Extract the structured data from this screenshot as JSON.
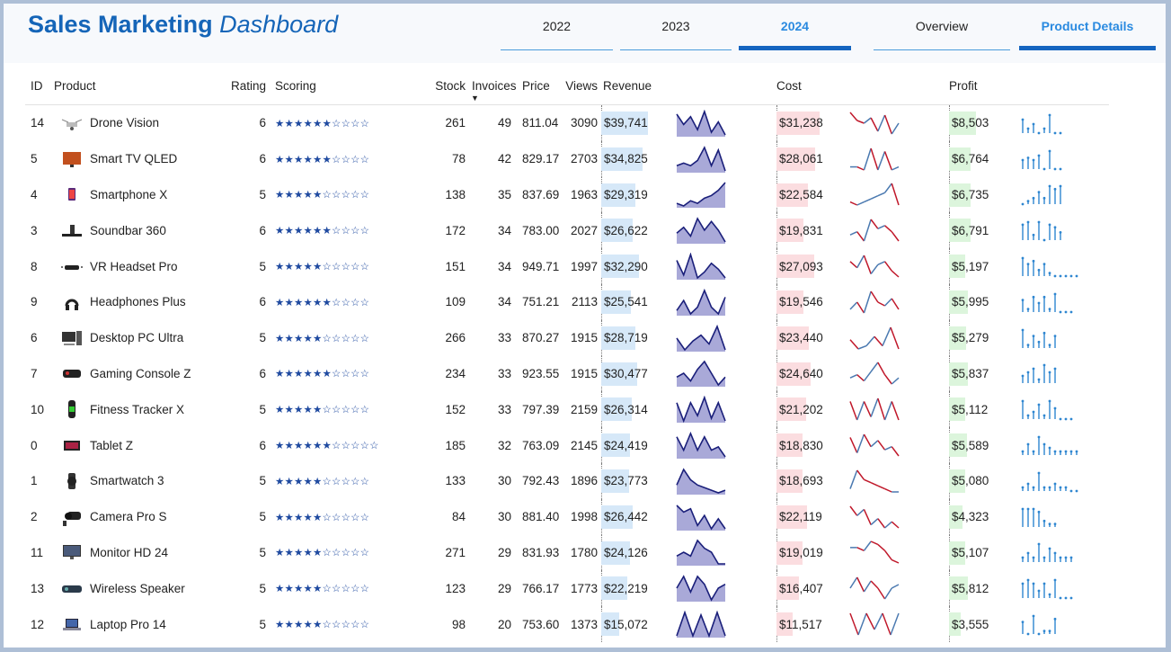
{
  "title": {
    "bold": "Sales Marketing",
    "italic": "Dashboard"
  },
  "years": [
    {
      "label": "2022",
      "active": false
    },
    {
      "label": "2023",
      "active": false
    },
    {
      "label": "2024",
      "active": true
    }
  ],
  "views": [
    {
      "label": "Overview",
      "active": false
    },
    {
      "label": "Product Details",
      "active": true
    }
  ],
  "columns": {
    "id": "ID",
    "product": "Product",
    "rating": "Rating",
    "scoring": "Scoring",
    "stock": "Stock",
    "invoices": "Invoices",
    "price": "Price",
    "views": "Views",
    "revenue": "Revenue",
    "cost": "Cost",
    "profit": "Profit"
  },
  "sort_indicator": "▼",
  "rows": [
    {
      "id": "14",
      "product": "Drone Vision",
      "icon": "drone-icon",
      "rating": "6",
      "stars_filled": 6,
      "stars_total": 10,
      "stock": "261",
      "invoices": "49",
      "price": "811.04",
      "views": "3090",
      "revenue": "$39,741",
      "revenue_value": 39741,
      "cost": "$31,238",
      "cost_value": 31238,
      "profit": "$8,503",
      "profit_value": 8503,
      "trend_rev": [
        8,
        4,
        7,
        2,
        9,
        1,
        5,
        0
      ],
      "trend_cost": [
        8,
        5,
        4,
        6,
        1,
        7,
        0,
        4
      ],
      "trend_profit": [
        6,
        2,
        4,
        0,
        2,
        8,
        0,
        0
      ]
    },
    {
      "id": "5",
      "product": "Smart TV QLED",
      "icon": "tv-icon",
      "rating": "6",
      "stars_filled": 6,
      "stars_total": 10,
      "stock": "78",
      "invoices": "42",
      "price": "829.17",
      "views": "2703",
      "revenue": "$34,825",
      "revenue_value": 34825,
      "cost": "$28,061",
      "cost_value": 28061,
      "profit": "$6,764",
      "profit_value": 6764,
      "trend_rev": [
        2,
        3,
        2,
        4,
        9,
        2,
        8,
        0
      ],
      "trend_cost": [
        3,
        3,
        2,
        9,
        2,
        8,
        2,
        3
      ],
      "trend_profit": [
        4,
        5,
        4,
        6,
        0,
        8,
        0,
        0
      ]
    },
    {
      "id": "4",
      "product": "Smartphone X",
      "icon": "phone-icon",
      "rating": "5",
      "stars_filled": 5,
      "stars_total": 10,
      "stock": "138",
      "invoices": "35",
      "price": "837.69",
      "views": "1963",
      "revenue": "$29,319",
      "revenue_value": 29319,
      "cost": "$22,584",
      "cost_value": 22584,
      "profit": "$6,735",
      "profit_value": 6735,
      "trend_rev": [
        1,
        0,
        2,
        1,
        3,
        4,
        6,
        9
      ],
      "trend_cost": [
        2,
        1,
        2,
        3,
        4,
        5,
        8,
        1
      ],
      "trend_profit": [
        0,
        1,
        2,
        4,
        2,
        6,
        5,
        6
      ]
    },
    {
      "id": "3",
      "product": "Soundbar 360",
      "icon": "soundbar-icon",
      "rating": "6",
      "stars_filled": 6,
      "stars_total": 10,
      "stock": "172",
      "invoices": "34",
      "price": "783.00",
      "views": "2027",
      "revenue": "$26,622",
      "revenue_value": 26622,
      "cost": "$19,831",
      "cost_value": 19831,
      "profit": "$6,791",
      "profit_value": 6791,
      "trend_rev": [
        3,
        5,
        2,
        8,
        4,
        7,
        4,
        0
      ],
      "trend_cost": [
        3,
        4,
        1,
        8,
        5,
        6,
        4,
        1
      ],
      "trend_profit": [
        6,
        7,
        2,
        7,
        0,
        6,
        5,
        3
      ]
    },
    {
      "id": "8",
      "product": "VR Headset Pro",
      "icon": "vr-icon",
      "rating": "5",
      "stars_filled": 5,
      "stars_total": 10,
      "stock": "151",
      "invoices": "34",
      "price": "949.71",
      "views": "1997",
      "revenue": "$32,290",
      "revenue_value": 32290,
      "cost": "$27,093",
      "cost_value": 27093,
      "profit": "$5,197",
      "profit_value": 5197,
      "trend_rev": [
        7,
        2,
        9,
        1,
        3,
        6,
        4,
        1
      ],
      "trend_cost": [
        6,
        4,
        8,
        2,
        5,
        6,
        3,
        1
      ],
      "trend_profit": [
        6,
        4,
        5,
        2,
        4,
        1,
        0,
        0,
        0,
        0,
        0
      ]
    },
    {
      "id": "9",
      "product": "Headphones Plus",
      "icon": "headphones-icon",
      "rating": "6",
      "stars_filled": 6,
      "stars_total": 10,
      "stock": "109",
      "invoices": "34",
      "price": "751.21",
      "views": "2113",
      "revenue": "$25,541",
      "revenue_value": 25541,
      "cost": "$19,546",
      "cost_value": 19546,
      "profit": "$5,995",
      "profit_value": 5995,
      "trend_rev": [
        2,
        5,
        1,
        3,
        8,
        3,
        1,
        6
      ],
      "trend_cost": [
        2,
        4,
        1,
        7,
        4,
        3,
        5,
        2
      ],
      "trend_profit": [
        4,
        1,
        5,
        3,
        5,
        1,
        6,
        0,
        0,
        0
      ]
    },
    {
      "id": "6",
      "product": "Desktop PC Ultra",
      "icon": "desktop-icon",
      "rating": "5",
      "stars_filled": 5,
      "stars_total": 10,
      "stock": "266",
      "invoices": "33",
      "price": "870.27",
      "views": "1915",
      "revenue": "$28,719",
      "revenue_value": 28719,
      "cost": "$23,440",
      "cost_value": 23440,
      "profit": "$5,279",
      "profit_value": 5279,
      "trend_rev": [
        4,
        0,
        3,
        5,
        2,
        8,
        0
      ],
      "trend_cost": [
        4,
        1,
        2,
        5,
        2,
        8,
        1
      ],
      "trend_profit": [
        6,
        1,
        4,
        2,
        5,
        1,
        4
      ]
    },
    {
      "id": "7",
      "product": "Gaming Console Z",
      "icon": "console-icon",
      "rating": "6",
      "stars_filled": 6,
      "stars_total": 10,
      "stock": "234",
      "invoices": "33",
      "price": "923.55",
      "views": "1915",
      "revenue": "$30,477",
      "revenue_value": 30477,
      "cost": "$24,640",
      "cost_value": 24640,
      "profit": "$5,837",
      "profit_value": 5837,
      "trend_rev": [
        2,
        3,
        1,
        4,
        6,
        3,
        0,
        2
      ],
      "trend_cost": [
        2,
        3,
        1,
        4,
        7,
        3,
        0,
        2
      ],
      "trend_profit": [
        2,
        3,
        4,
        1,
        5,
        3,
        4
      ]
    },
    {
      "id": "10",
      "product": "Fitness Tracker X",
      "icon": "tracker-icon",
      "rating": "5",
      "stars_filled": 5,
      "stars_total": 10,
      "stock": "152",
      "invoices": "33",
      "price": "797.39",
      "views": "2159",
      "revenue": "$26,314",
      "revenue_value": 26314,
      "cost": "$21,202",
      "cost_value": 21202,
      "profit": "$5,112",
      "profit_value": 5112,
      "trend_rev": [
        7,
        0,
        7,
        2,
        9,
        1,
        7,
        0
      ],
      "trend_cost": [
        7,
        1,
        7,
        2,
        8,
        1,
        7,
        1
      ],
      "trend_profit": [
        5,
        1,
        2,
        4,
        1,
        5,
        3,
        0,
        0,
        0
      ]
    },
    {
      "id": "0",
      "product": "Tablet Z",
      "icon": "tablet-icon",
      "rating": "6",
      "stars_filled": 6,
      "stars_total": 11,
      "stock": "185",
      "invoices": "32",
      "price": "763.09",
      "views": "2145",
      "revenue": "$24,419",
      "revenue_value": 24419,
      "cost": "$18,830",
      "cost_value": 18830,
      "profit": "$5,589",
      "profit_value": 5589,
      "trend_rev": [
        7,
        3,
        8,
        3,
        7,
        3,
        4,
        1
      ],
      "trend_cost": [
        7,
        2,
        8,
        4,
        6,
        3,
        4,
        1
      ],
      "trend_profit": [
        1,
        3,
        1,
        5,
        3,
        2,
        1,
        1,
        1,
        1,
        1
      ]
    },
    {
      "id": "1",
      "product": "Smartwatch 3",
      "icon": "watch-icon",
      "rating": "5",
      "stars_filled": 5,
      "stars_total": 10,
      "stock": "133",
      "invoices": "30",
      "price": "792.43",
      "views": "1896",
      "revenue": "$23,773",
      "revenue_value": 23773,
      "cost": "$18,693",
      "cost_value": 18693,
      "profit": "$5,080",
      "profit_value": 5080,
      "trend_rev": [
        3,
        9,
        5,
        3,
        2,
        1,
        0,
        1
      ],
      "trend_cost": [
        2,
        8,
        5,
        4,
        3,
        2,
        1,
        1
      ],
      "trend_profit": [
        1,
        2,
        1,
        5,
        1,
        1,
        2,
        1,
        1,
        0,
        0
      ]
    },
    {
      "id": "2",
      "product": "Camera Pro S",
      "icon": "camera-icon",
      "rating": "5",
      "stars_filled": 5,
      "stars_total": 10,
      "stock": "84",
      "invoices": "30",
      "price": "881.40",
      "views": "1998",
      "revenue": "$26,442",
      "revenue_value": 26442,
      "cost": "$22,119",
      "cost_value": 22119,
      "profit": "$4,323",
      "profit_value": 4323,
      "trend_rev": [
        8,
        6,
        7,
        2,
        5,
        1,
        4,
        1
      ],
      "trend_cost": [
        8,
        5,
        7,
        2,
        4,
        1,
        3,
        1
      ],
      "trend_profit": [
        6,
        6,
        6,
        5,
        2,
        1,
        1
      ]
    },
    {
      "id": "11",
      "product": "Monitor HD 24",
      "icon": "monitor-icon",
      "rating": "5",
      "stars_filled": 5,
      "stars_total": 10,
      "stock": "271",
      "invoices": "29",
      "price": "831.93",
      "views": "1780",
      "revenue": "$24,126",
      "revenue_value": 24126,
      "cost": "$19,019",
      "cost_value": 19019,
      "profit": "$5,107",
      "profit_value": 5107,
      "trend_rev": [
        2,
        3,
        2,
        6,
        4,
        3,
        0,
        0
      ],
      "trend_cost": [
        5,
        5,
        4,
        7,
        6,
        4,
        1,
        0
      ],
      "trend_profit": [
        1,
        2,
        1,
        4,
        1,
        3,
        2,
        1,
        1,
        1
      ]
    },
    {
      "id": "13",
      "product": "Wireless Speaker",
      "icon": "speaker-icon",
      "rating": "5",
      "stars_filled": 5,
      "stars_total": 10,
      "stock": "123",
      "invoices": "29",
      "price": "766.17",
      "views": "1773",
      "revenue": "$22,219",
      "revenue_value": 22219,
      "cost": "$16,407",
      "cost_value": 16407,
      "profit": "$5,812",
      "profit_value": 5812,
      "trend_rev": [
        3,
        6,
        2,
        6,
        4,
        0,
        3,
        4
      ],
      "trend_cost": [
        3,
        6,
        2,
        5,
        3,
        0,
        3,
        4
      ],
      "trend_profit": [
        4,
        5,
        4,
        2,
        4,
        1,
        5,
        0,
        0,
        0
      ]
    },
    {
      "id": "12",
      "product": "Laptop Pro 14",
      "icon": "laptop-icon",
      "rating": "5",
      "stars_filled": 5,
      "stars_total": 10,
      "stock": "98",
      "invoices": "20",
      "price": "753.60",
      "views": "1373",
      "revenue": "$15,072",
      "revenue_value": 15072,
      "cost": "$11,517",
      "cost_value": 11517,
      "profit": "$3,555",
      "profit_value": 3555,
      "trend_rev": [
        0,
        9,
        0,
        8,
        0,
        9,
        0
      ],
      "trend_cost": [
        8,
        0,
        8,
        2,
        8,
        0,
        8
      ],
      "trend_profit": [
        4,
        0,
        6,
        0,
        1,
        1,
        5
      ]
    }
  ],
  "colors": {
    "accent": "#1565b8",
    "active_tab": "#2a8ae0",
    "revenue_bar": "#d6e8f8",
    "cost_bar": "#fbdde0",
    "profit_bar": "#dcf5dc",
    "revenue_line": "#1a1f7a",
    "revenue_fill": "#a9a9d8",
    "cost_line_up": "#4a79b0",
    "cost_line_down": "#c0182a",
    "profit_stem": "#2e86d0",
    "star": "#1f4aa0"
  }
}
